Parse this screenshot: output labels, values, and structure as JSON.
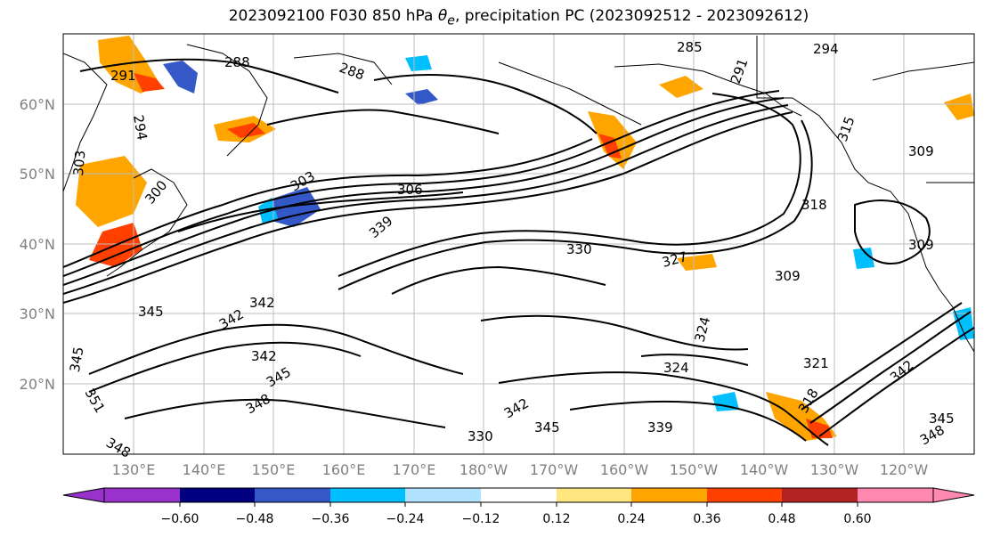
{
  "title": {
    "prefix": "2023092100 F030 850 hPa ",
    "theta": "θ",
    "theta_sub": "e",
    "suffix": ", precipitation PC (2023092512 - 2023092612)"
  },
  "map": {
    "lat_labels": [
      "60°N",
      "50°N",
      "40°N",
      "30°N",
      "20°N"
    ],
    "lon_labels": [
      "130°E",
      "140°E",
      "150°E",
      "160°E",
      "170°E",
      "180°W",
      "170°W",
      "160°W",
      "150°W",
      "140°W",
      "130°W",
      "120°W"
    ],
    "contour_labels": [
      "288",
      "291",
      "294",
      "285",
      "294",
      "291",
      "288",
      "303",
      "300",
      "306",
      "303",
      "309",
      "315",
      "318",
      "309",
      "330",
      "327",
      "309",
      "339",
      "342",
      "345",
      "342",
      "342",
      "345",
      "348",
      "351",
      "345",
      "348",
      "342",
      "324",
      "321",
      "324",
      "318",
      "330",
      "345",
      "339",
      "342",
      "345",
      "348"
    ],
    "colors": {
      "contour": "#000000",
      "grid": "#bdbdbd",
      "coast": "#000000"
    }
  },
  "colorbar": {
    "ticks": [
      "−0.60",
      "−0.48",
      "−0.36",
      "−0.24",
      "−0.12",
      "0.12",
      "0.24",
      "0.36",
      "0.48",
      "0.60"
    ],
    "colors": [
      "#9932cc",
      "#000080",
      "#3458c8",
      "#00bfff",
      "#b0e2ff",
      "#ffffff",
      "#ffe680",
      "#ffa500",
      "#ff4000",
      "#b22222",
      "#ff88b0"
    ]
  }
}
